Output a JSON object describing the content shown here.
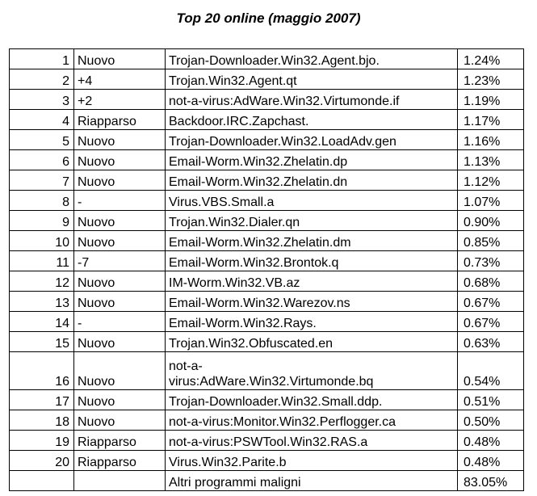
{
  "title": "Top 20 online (maggio 2007)",
  "rows": [
    {
      "rank": "1",
      "change": "Nuovo",
      "name": "Trojan-Downloader.Win32.Agent.bjo.",
      "share": "1.24%"
    },
    {
      "rank": "2",
      "change": "+4",
      "name": "Trojan.Win32.Agent.qt",
      "share": "1.23%"
    },
    {
      "rank": "3",
      "change": "+2",
      "name": "not-a-virus:AdWare.Win32.Virtumonde.if",
      "share": "1.19%"
    },
    {
      "rank": "4",
      "change": "Riapparso",
      "name": "Backdoor.IRC.Zapchast.",
      "share": "1.17%"
    },
    {
      "rank": "5",
      "change": "Nuovo",
      "name": "Trojan-Downloader.Win32.LoadAdv.gen",
      "share": "1.16%"
    },
    {
      "rank": "6",
      "change": "Nuovo",
      "name": "Email-Worm.Win32.Zhelatin.dp",
      "share": "1.13%"
    },
    {
      "rank": "7",
      "change": "Nuovo",
      "name": "Email-Worm.Win32.Zhelatin.dn",
      "share": "1.12%"
    },
    {
      "rank": "8",
      "change": "-",
      "name": "Virus.VBS.Small.a",
      "share": "1.07%"
    },
    {
      "rank": "9",
      "change": "Nuovo",
      "name": "Trojan.Win32.Dialer.qn",
      "share": "0.90%"
    },
    {
      "rank": "10",
      "change": "Nuovo",
      "name": "Email-Worm.Win32.Zhelatin.dm",
      "share": "0.85%"
    },
    {
      "rank": "11",
      "change": "-7",
      "name": "Email-Worm.Win32.Brontok.q",
      "share": "0.73%"
    },
    {
      "rank": "12",
      "change": "Nuovo",
      "name": "IM-Worm.Win32.VB.az",
      "share": "0.68%"
    },
    {
      "rank": "13",
      "change": "Nuovo",
      "name": "Email-Worm.Win32.Warezov.ns",
      "share": "0.67%"
    },
    {
      "rank": "14",
      "change": "-",
      "name": "Email-Worm.Win32.Rays.",
      "share": "0.67%"
    },
    {
      "rank": "15",
      "change": "Nuovo",
      "name": "Trojan.Win32.Obfuscated.en",
      "share": "0.63%"
    },
    {
      "rank": "16",
      "change": "Nuovo",
      "name": "not-a-virus:AdWare.Win32.Virtumonde.bq",
      "share": "0.54%"
    },
    {
      "rank": "17",
      "change": "Nuovo",
      "name": "Trojan-Downloader.Win32.Small.ddp.",
      "share": "0.51%"
    },
    {
      "rank": "18",
      "change": "Nuovo",
      "name": "not-a-virus:Monitor.Win32.Perflogger.ca",
      "share": "0.50%"
    },
    {
      "rank": "19",
      "change": "Riapparso",
      "name": "not-a-virus:PSWTool.Win32.RAS.a",
      "share": "0.48%"
    },
    {
      "rank": "20",
      "change": "Riapparso",
      "name": "Virus.Win32.Parite.b",
      "share": "0.48%"
    }
  ],
  "footer": {
    "label": "Altri programmi maligni",
    "share": "83.05%"
  }
}
